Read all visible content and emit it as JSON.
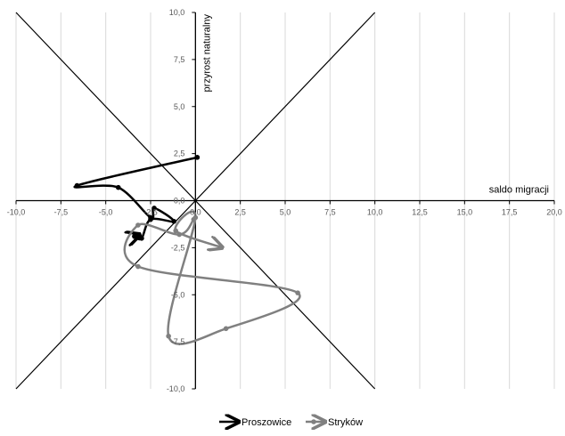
{
  "chart_data": {
    "type": "line",
    "xlabel": "saldo migracji",
    "ylabel": "przyrost naturalny",
    "xlim": [
      -10,
      20
    ],
    "ylim": [
      -10,
      10
    ],
    "x_ticks": [
      "-10,0",
      "-7,5",
      "-5,0",
      "-2,5",
      "0,0",
      "2,5",
      "5,0",
      "7,5",
      "10,0",
      "12,5",
      "15,0",
      "17,5",
      "20,0"
    ],
    "y_ticks": [
      "10,0",
      "7,5",
      "5,0",
      "2,5",
      "0,0",
      "-2,5",
      "-5,0",
      "-7,5",
      "-10,0"
    ],
    "grid": "vertical",
    "legend": "bottom-center",
    "reference_lines": [
      {
        "from": [
          -10,
          -10
        ],
        "to": [
          10,
          10
        ]
      },
      {
        "from": [
          -10,
          10
        ],
        "to": [
          10,
          -10
        ]
      }
    ],
    "series": [
      {
        "name": "Proszowice",
        "color": "#000000",
        "points": [
          {
            "x": 0.1,
            "y": 2.3
          },
          {
            "x": -6.6,
            "y": 0.8
          },
          {
            "x": -4.3,
            "y": 0.7
          },
          {
            "x": -2.5,
            "y": -0.9
          },
          {
            "x": -2.3,
            "y": -0.4
          },
          {
            "x": -1.2,
            "y": -1.1
          },
          {
            "x": -2.5,
            "y": -1.0
          },
          {
            "x": -3.0,
            "y": -2.0
          },
          {
            "x": -3.4,
            "y": -1.9
          },
          {
            "x": -3.1,
            "y": -1.8
          }
        ]
      },
      {
        "name": "Stryków",
        "color": "#808080",
        "points": [
          {
            "x": -0.1,
            "y": -1.0
          },
          {
            "x": -0.9,
            "y": -1.8
          },
          {
            "x": -3.2,
            "y": -1.3
          },
          {
            "x": -3.2,
            "y": -3.5
          },
          {
            "x": 5.7,
            "y": -4.9
          },
          {
            "x": 1.7,
            "y": -6.8
          },
          {
            "x": -1.5,
            "y": -7.2
          },
          {
            "x": 0.0,
            "y": -0.9
          },
          {
            "x": -1.1,
            "y": -1.6
          },
          {
            "x": 1.5,
            "y": -2.5
          }
        ]
      }
    ]
  }
}
